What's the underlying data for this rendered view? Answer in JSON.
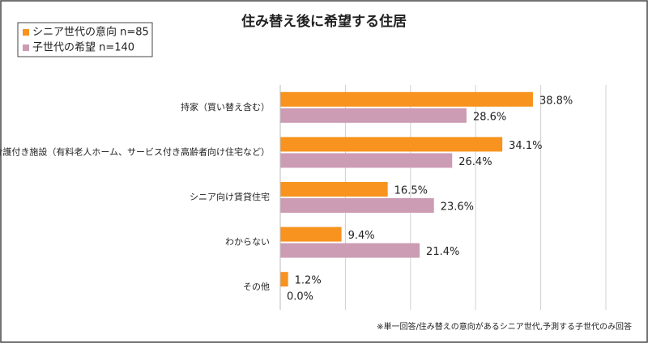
{
  "chart_data": {
    "type": "hbar",
    "title": "住み替え後に希望する住居",
    "categories": [
      "持家（買い替え含む）",
      "介護付き施設（有料老人ホーム、サービス付き高齢者向け住宅など）",
      "シニア向け賃貸住宅",
      "わからない",
      "その他"
    ],
    "series": [
      {
        "name": "シニア世代の意向 n=85",
        "color": "#f7931e",
        "values": [
          38.8,
          34.1,
          16.5,
          9.4,
          1.2
        ],
        "value_labels": [
          "38.8%",
          "34.1%",
          "16.5%",
          "9.4%",
          "1.2%"
        ]
      },
      {
        "name": "子世代の希望 n=140",
        "color": "#cc9cb4",
        "values": [
          28.6,
          26.4,
          23.6,
          21.4,
          0.0
        ],
        "value_labels": [
          "28.6%",
          "26.4%",
          "23.6%",
          "21.4%",
          "0.0%"
        ]
      }
    ],
    "xlim": [
      0,
      50
    ],
    "xticks": [
      0,
      10,
      20,
      30,
      40,
      50
    ],
    "grid": true,
    "note": "※単一回答/住み替えの意向があるシニア世代,予測する子世代のみ回答"
  }
}
